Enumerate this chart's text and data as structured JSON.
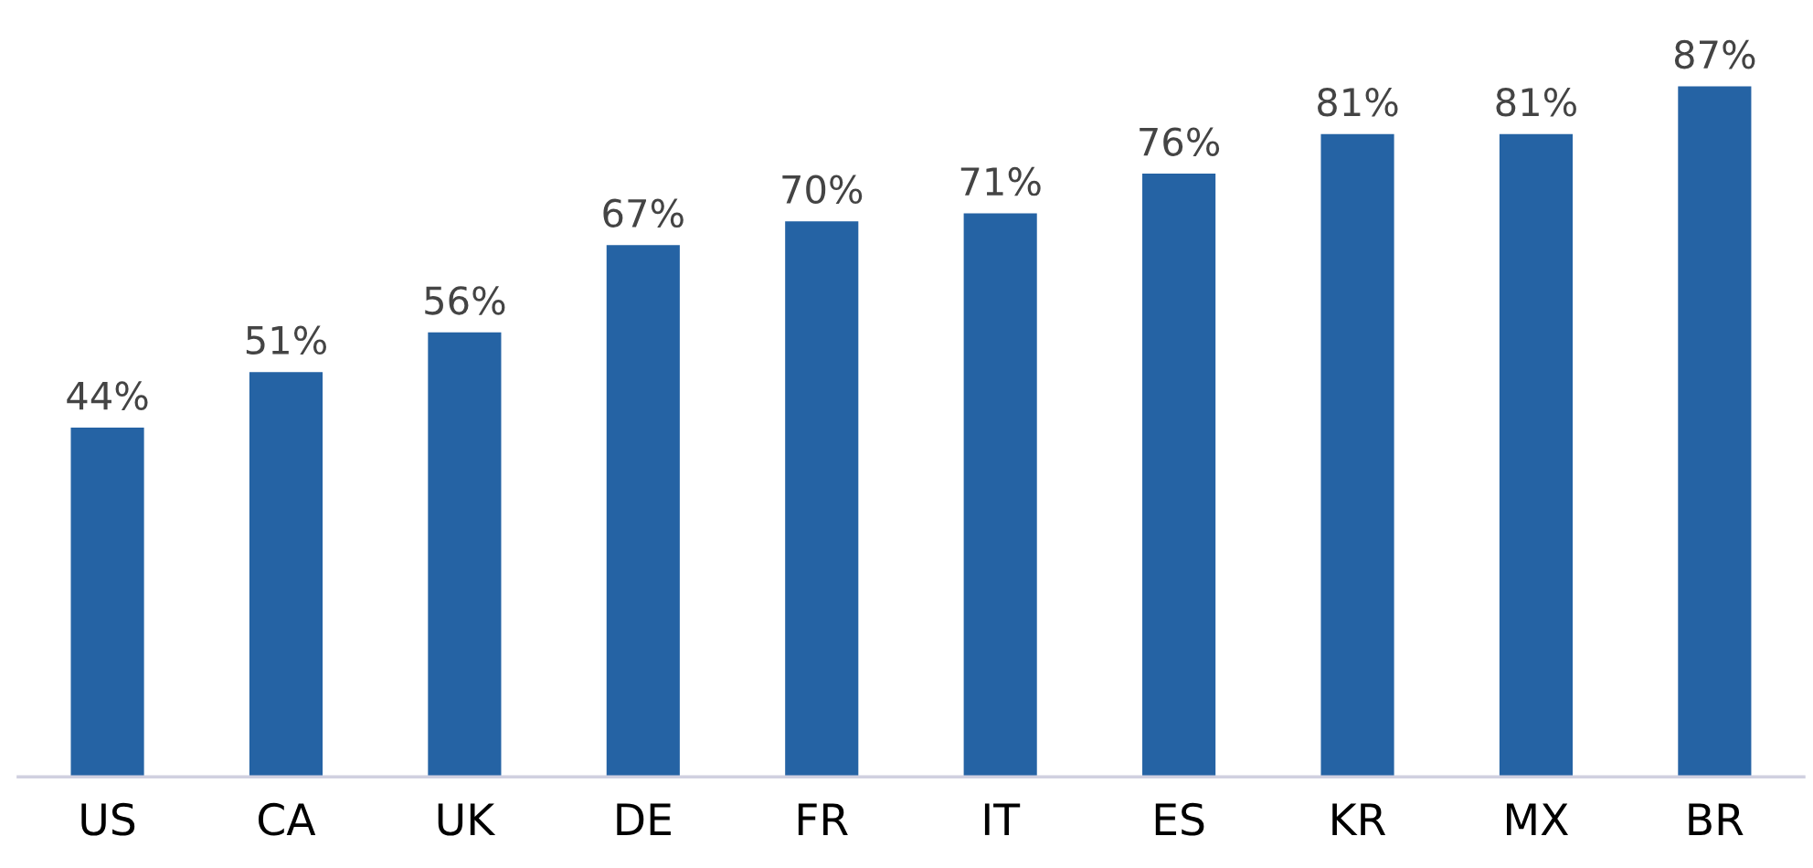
{
  "chart_data": {
    "type": "bar",
    "categories": [
      "US",
      "CA",
      "UK",
      "DE",
      "FR",
      "IT",
      "ES",
      "KR",
      "MX",
      "BR"
    ],
    "values": [
      44,
      51,
      56,
      67,
      70,
      71,
      76,
      81,
      81,
      87
    ],
    "value_labels": [
      "44%",
      "51%",
      "56%",
      "67%",
      "70%",
      "71%",
      "76%",
      "81%",
      "81%",
      "87%"
    ],
    "color": "#2563a4",
    "grid": false,
    "legend": false
  }
}
